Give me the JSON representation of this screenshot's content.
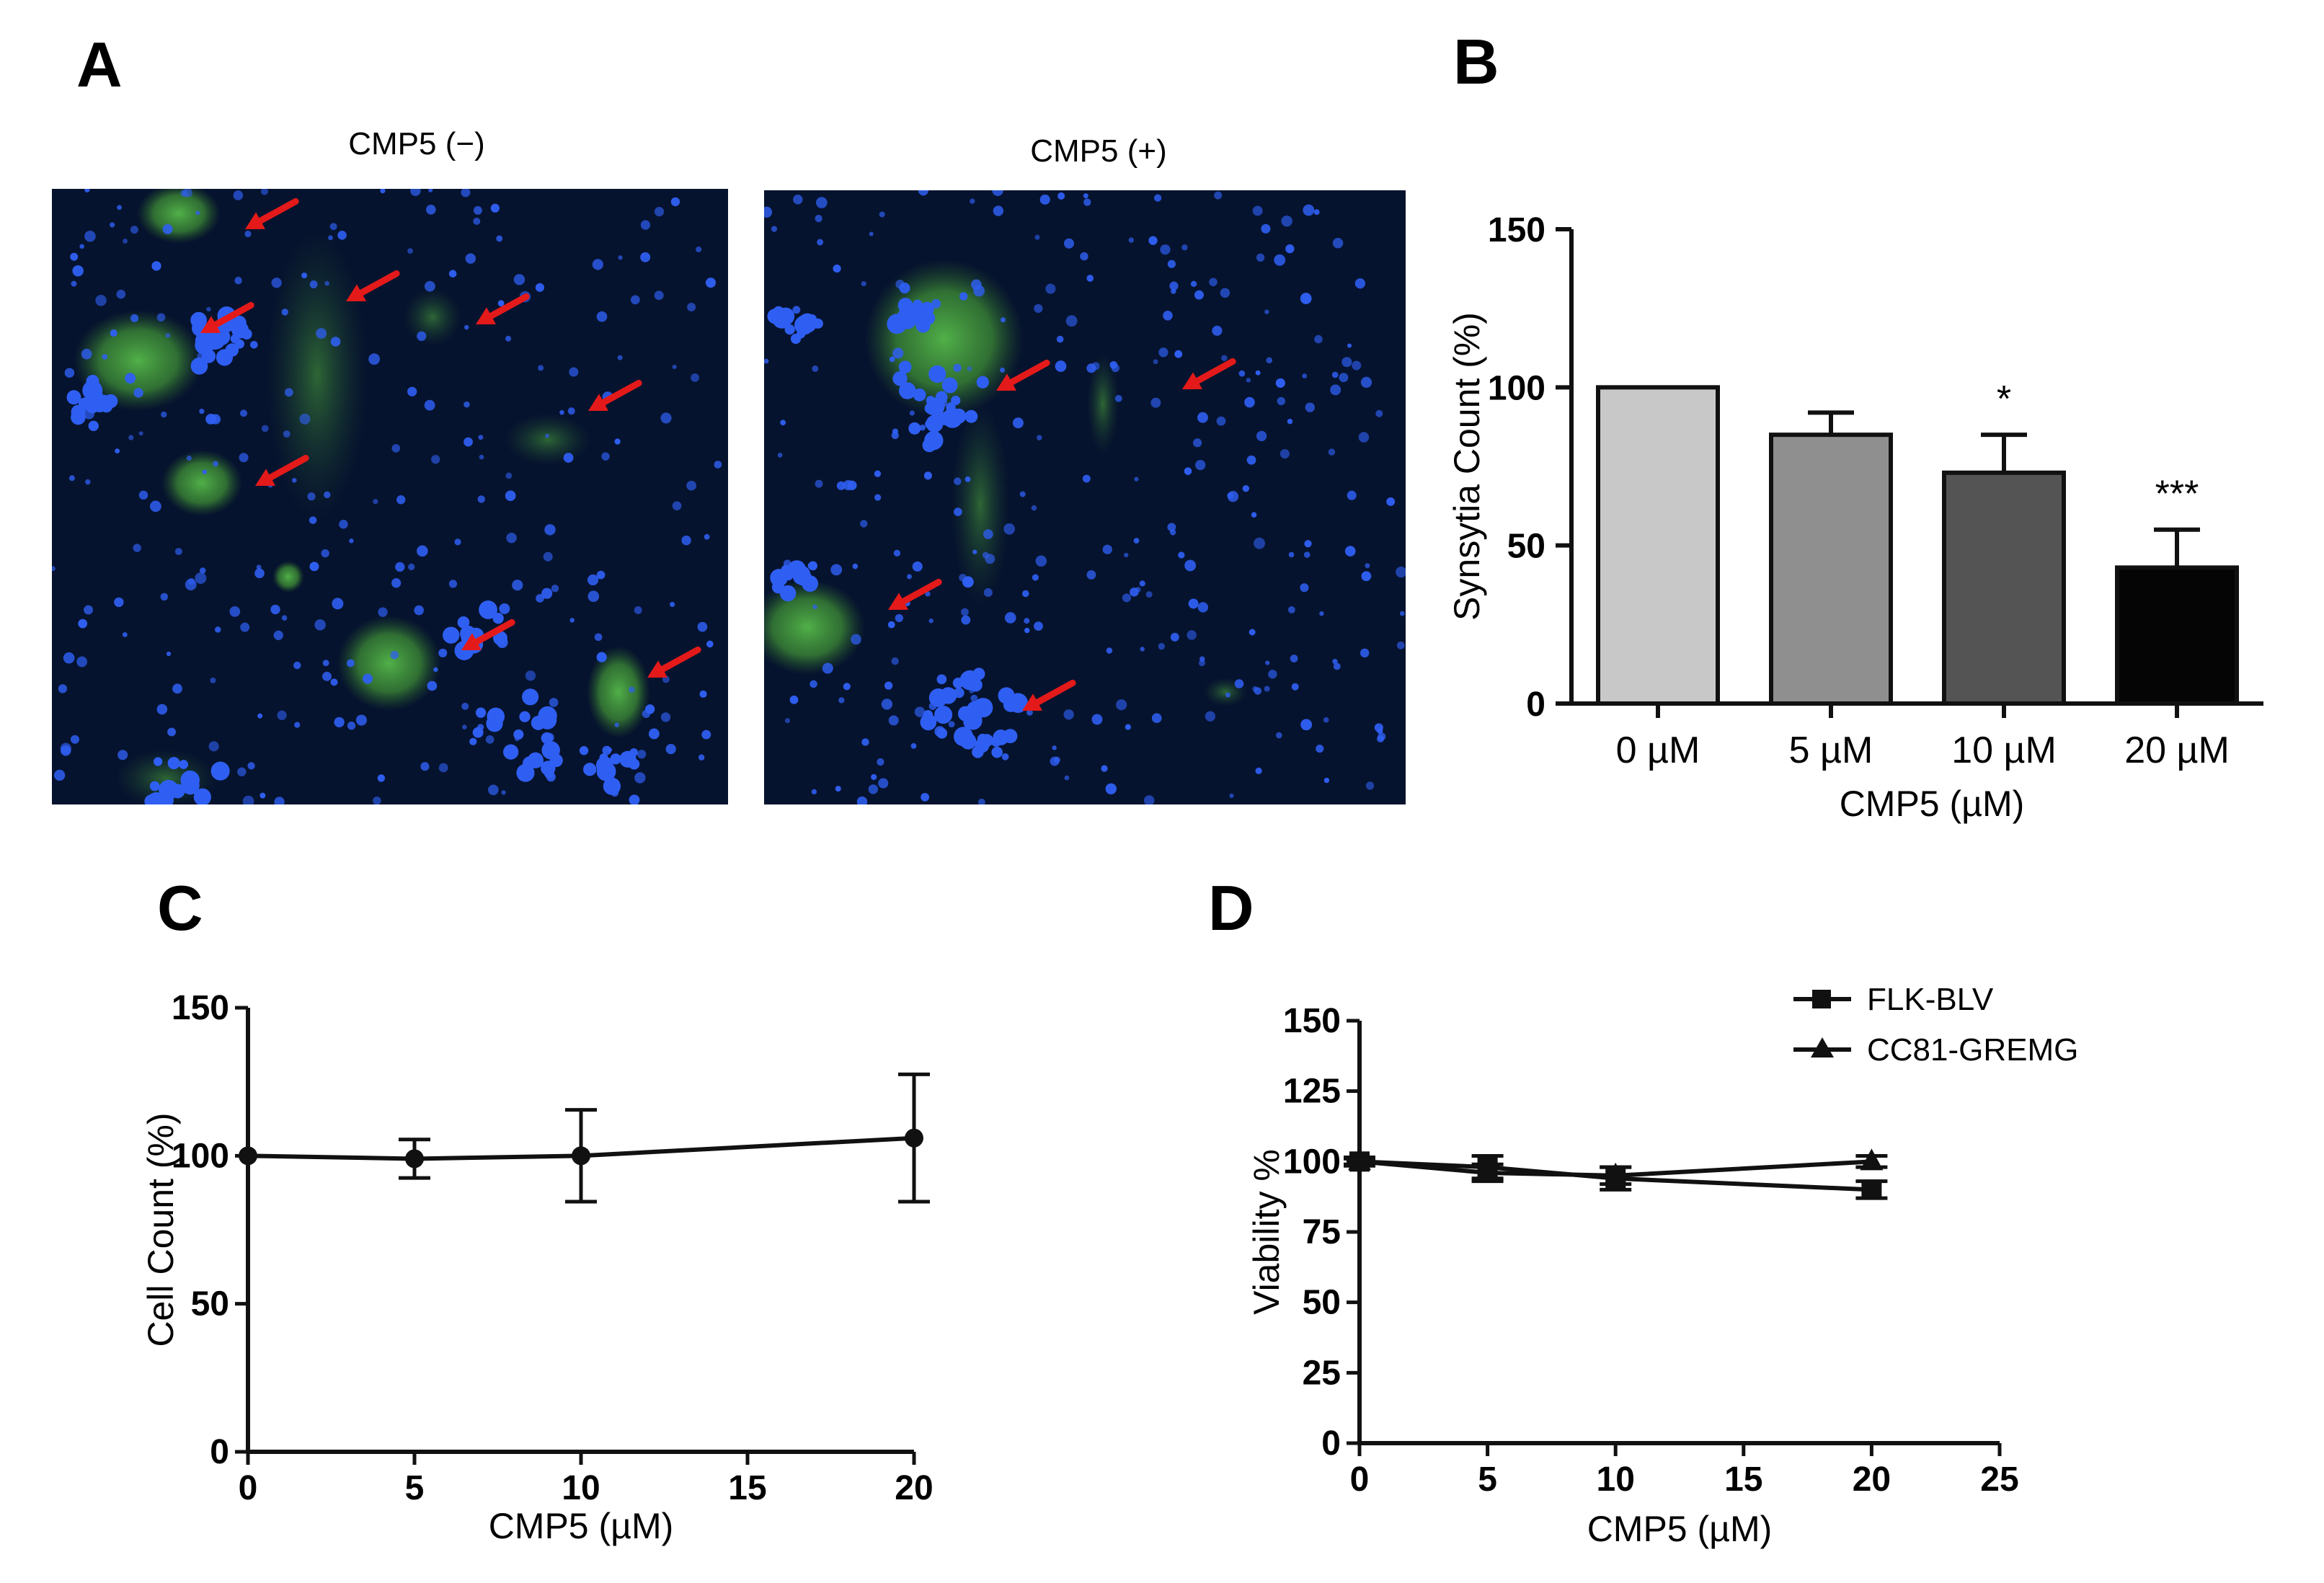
{
  "panels": {
    "A": {
      "letter": "A",
      "images": [
        {
          "title": "CMP5 (−)",
          "arrow_count": 9
        },
        {
          "title": "CMP5 (+)",
          "arrow_count": 4
        }
      ],
      "colors": {
        "background": "#06132e",
        "nuclei": "#2f5ff2",
        "cells": "#3f9a2f",
        "arrow": "#e41a1a"
      }
    },
    "B": {
      "letter": "B"
    },
    "C": {
      "letter": "C"
    },
    "D": {
      "letter": "D"
    }
  },
  "chart_data": [
    {
      "panel": "B",
      "type": "bar",
      "categories": [
        "0 µM",
        "5 µM",
        "10 µM",
        "20 µM"
      ],
      "values": [
        100,
        85,
        73,
        43
      ],
      "errors": [
        0,
        7,
        12,
        12
      ],
      "significance": [
        "",
        "",
        "*",
        "***"
      ],
      "bar_colors": [
        "#c8c8c8",
        "#8f8f8f",
        "#545454",
        "#050505"
      ],
      "xlabel": "CMP5 (µM)",
      "ylabel": "Synsytia Count (%)",
      "ylim": [
        0,
        150
      ],
      "yticks": [
        0,
        50,
        100,
        150
      ],
      "grid": false
    },
    {
      "panel": "C",
      "type": "line",
      "x": [
        0,
        5,
        10,
        20
      ],
      "y": [
        100,
        99,
        100,
        106
      ],
      "errors": [
        0,
        6.5,
        15.5,
        21.5
      ],
      "xlabel": "CMP5 (µM)",
      "ylabel": "Cell Count (%)",
      "xlim": [
        0,
        20
      ],
      "ylim": [
        0,
        150
      ],
      "xticks": [
        0,
        5,
        10,
        15,
        20
      ],
      "yticks": [
        0,
        50,
        100,
        150
      ],
      "grid": false
    },
    {
      "panel": "D",
      "type": "line",
      "x": [
        0,
        5,
        10,
        20
      ],
      "series": [
        {
          "name": "FLK-BLV",
          "marker": "square",
          "values": [
            100,
            98,
            94,
            90
          ],
          "errors": [
            1.5,
            4,
            4,
            3
          ]
        },
        {
          "name": "CC81-GREMG",
          "marker": "triangle",
          "values": [
            100,
            96,
            95,
            100
          ],
          "errors": [
            1,
            3,
            3,
            2
          ]
        }
      ],
      "xlabel": "CMP5 (µM)",
      "ylabel": "Viability %",
      "xlim": [
        0,
        25
      ],
      "ylim": [
        0,
        150
      ],
      "xticks": [
        0,
        5,
        10,
        15,
        20,
        25
      ],
      "yticks": [
        0,
        25,
        50,
        75,
        100,
        125,
        150
      ],
      "legend_position": "top-right",
      "grid": false
    }
  ]
}
